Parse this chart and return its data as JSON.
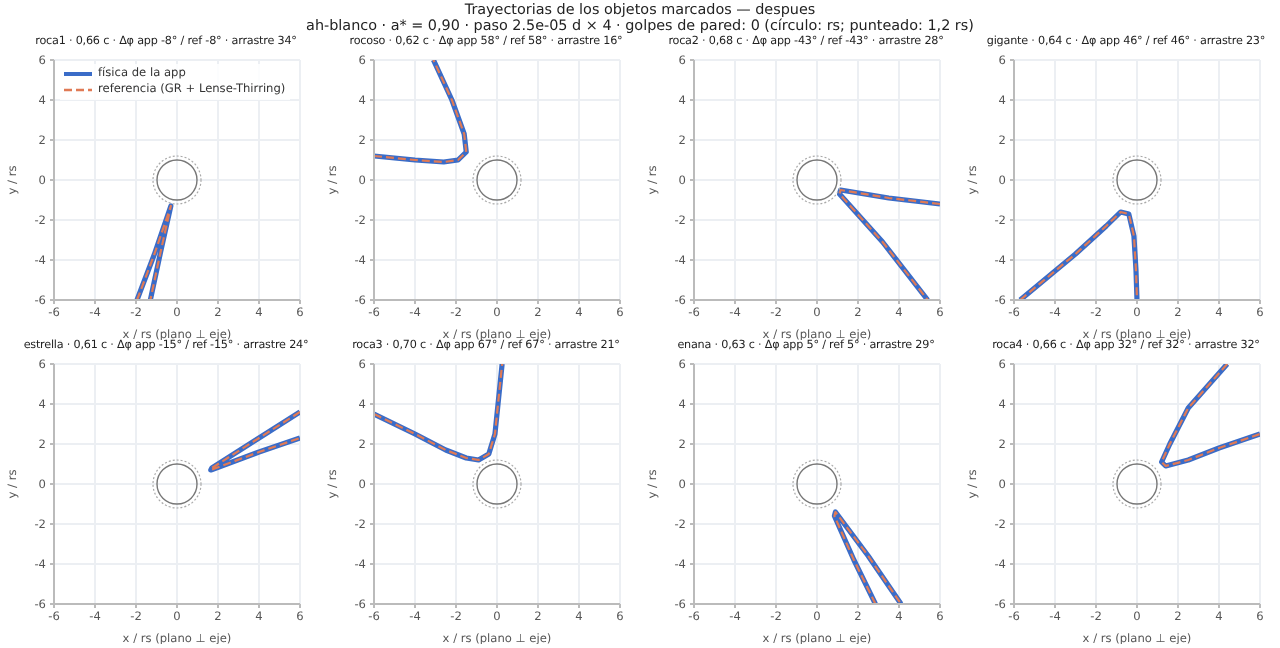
{
  "chart_data": [
    {
      "type": "line",
      "title": "roca1 · 0,66 c · Δφ app -8° / ref -8° · arrastre 34°",
      "annotations": [
        "Trayectorias de los objetos marcados — despues",
        "ah-blanco · a* = 0,90 · paso 2.5e-05 d × 4 · golpes de pared: 0  (círculo: rs; punteado: 1,2 rs)"
      ],
      "xlabel": "x / rs (plano ⊥ eje)",
      "ylabel": "y / rs",
      "xlim": [
        -6,
        6
      ],
      "ylim": [
        -6,
        6
      ],
      "xticks": [
        -6,
        -4,
        -2,
        0,
        2,
        4,
        6
      ],
      "yticks": [
        -6,
        -4,
        -2,
        0,
        2,
        4,
        6
      ],
      "grid": true,
      "legend": "top left",
      "series": [
        {
          "name": "física de la app",
          "color": "#3a6cc8",
          "line_style": "solid",
          "x": [
            -1.95,
            -1.1,
            -0.3,
            -0.8,
            -1.3
          ],
          "values": [
            -6,
            -3.7,
            -1.3,
            -3.6,
            -6
          ]
        },
        {
          "name": "referencia (GR + Lense-Thirring)",
          "color": "#e07a55",
          "line_style": "dashed",
          "x": [
            -1.95,
            -1.1,
            -0.3,
            -0.8,
            -1.3
          ],
          "values": [
            -6,
            -3.7,
            -1.3,
            -3.6,
            -6
          ]
        }
      ]
    },
    {
      "type": "line",
      "title": "rocoso · 0,62 c · Δφ app 58° / ref 58° · arrastre 16°",
      "xlabel": "x / rs (plano ⊥ eje)",
      "ylabel": "y / rs",
      "xlim": [
        -6,
        6
      ],
      "ylim": [
        -6,
        6
      ],
      "xticks": [
        -6,
        -4,
        -2,
        0,
        2,
        4,
        6
      ],
      "yticks": [
        -6,
        -4,
        -2,
        0,
        2,
        4,
        6
      ],
      "grid": true,
      "series": [
        {
          "color": "#3a6cc8",
          "line_style": "solid",
          "x": [
            -6,
            -4,
            -2.6,
            -1.9,
            -1.5,
            -1.6,
            -2.2,
            -3.1
          ],
          "values": [
            1.2,
            1.0,
            0.9,
            1.0,
            1.4,
            2.3,
            4,
            6
          ]
        },
        {
          "color": "#e07a55",
          "line_style": "dashed",
          "x": [
            -6,
            -4,
            -2.6,
            -1.9,
            -1.5,
            -1.6,
            -2.2,
            -3.1
          ],
          "values": [
            1.2,
            1.0,
            0.9,
            1.0,
            1.4,
            2.3,
            4,
            6
          ]
        }
      ]
    },
    {
      "type": "line",
      "title": "roca2 · 0,68 c · Δφ app -43° / ref -43° · arrastre 28°",
      "xlabel": "x / rs (plano ⊥ eje)",
      "ylabel": "y / rs",
      "xlim": [
        -6,
        6
      ],
      "ylim": [
        -6,
        6
      ],
      "xticks": [
        -6,
        -4,
        -2,
        0,
        2,
        4,
        6
      ],
      "yticks": [
        -6,
        -4,
        -2,
        0,
        2,
        4,
        6
      ],
      "grid": true,
      "series": [
        {
          "color": "#3a6cc8",
          "line_style": "solid",
          "x": [
            6,
            3.5,
            1.15,
            1.1,
            3.2,
            5.4
          ],
          "values": [
            -1.2,
            -0.9,
            -0.5,
            -0.7,
            -3.1,
            -6
          ]
        },
        {
          "color": "#e07a55",
          "line_style": "dashed",
          "x": [
            6,
            3.5,
            1.15,
            1.1,
            3.2,
            5.4
          ],
          "values": [
            -1.2,
            -0.9,
            -0.5,
            -0.7,
            -3.1,
            -6
          ]
        }
      ]
    },
    {
      "type": "line",
      "title": "gigante · 0,64 c · Δφ app 46° / ref 46° · arrastre 23°",
      "xlabel": "x / rs (plano ⊥ eje)",
      "ylabel": "y / rs",
      "xlim": [
        -6,
        6
      ],
      "ylim": [
        -6,
        6
      ],
      "xticks": [
        -6,
        -4,
        -2,
        0,
        2,
        4,
        6
      ],
      "yticks": [
        -6,
        -4,
        -2,
        0,
        2,
        4,
        6
      ],
      "grid": true,
      "series": [
        {
          "color": "#3a6cc8",
          "line_style": "solid",
          "x": [
            -5.7,
            -3,
            -1.5,
            -0.8,
            -0.4,
            -0.15,
            -0.05,
            0
          ],
          "values": [
            -6,
            -3.7,
            -2.3,
            -1.6,
            -1.7,
            -2.8,
            -4.5,
            -6
          ]
        },
        {
          "color": "#e07a55",
          "line_style": "dashed",
          "x": [
            -5.7,
            -3,
            -1.5,
            -0.8,
            -0.4,
            -0.15,
            -0.05,
            0
          ],
          "values": [
            -6,
            -3.7,
            -2.3,
            -1.6,
            -1.7,
            -2.8,
            -4.5,
            -6
          ]
        }
      ]
    },
    {
      "type": "line",
      "title": "estrella · 0,61 c · Δφ app -15° / ref -15° · arrastre 24°",
      "xlabel": "x / rs (plano ⊥ eje)",
      "ylabel": "y / rs",
      "xlim": [
        -6,
        6
      ],
      "ylim": [
        -6,
        6
      ],
      "xticks": [
        -6,
        -4,
        -2,
        0,
        2,
        4,
        6
      ],
      "yticks": [
        -6,
        -4,
        -2,
        0,
        2,
        4,
        6
      ],
      "grid": true,
      "series": [
        {
          "color": "#3a6cc8",
          "line_style": "solid",
          "x": [
            6,
            4,
            1.7,
            1.65,
            4,
            6
          ],
          "values": [
            3.6,
            2.3,
            0.8,
            0.7,
            1.6,
            2.3
          ]
        },
        {
          "color": "#e07a55",
          "line_style": "dashed",
          "x": [
            6,
            4,
            1.7,
            1.65,
            4,
            6
          ],
          "values": [
            3.6,
            2.3,
            0.8,
            0.7,
            1.6,
            2.3
          ]
        }
      ]
    },
    {
      "type": "line",
      "title": "roca3 · 0,70 c · Δφ app 67° / ref 67° · arrastre 21°",
      "xlabel": "x / rs (plano ⊥ eje)",
      "ylabel": "y / rs",
      "xlim": [
        -6,
        6
      ],
      "ylim": [
        -6,
        6
      ],
      "xticks": [
        -6,
        -4,
        -2,
        0,
        2,
        4,
        6
      ],
      "yticks": [
        -6,
        -4,
        -2,
        0,
        2,
        4,
        6
      ],
      "grid": true,
      "series": [
        {
          "color": "#3a6cc8",
          "line_style": "solid",
          "x": [
            -6,
            -4,
            -2.5,
            -1.5,
            -0.9,
            -0.4,
            -0.1,
            0.05,
            0.25
          ],
          "values": [
            3.5,
            2.5,
            1.7,
            1.3,
            1.2,
            1.5,
            2.5,
            4,
            6
          ]
        },
        {
          "color": "#e07a55",
          "line_style": "dashed",
          "x": [
            -6,
            -4,
            -2.5,
            -1.5,
            -0.9,
            -0.4,
            -0.1,
            0.05,
            0.25
          ],
          "values": [
            3.5,
            2.5,
            1.7,
            1.3,
            1.2,
            1.5,
            2.5,
            4,
            6
          ]
        }
      ]
    },
    {
      "type": "line",
      "title": "enana · 0,63 c · Δφ app 5° / ref 5° · arrastre 29°",
      "xlabel": "x / rs (plano ⊥ eje)",
      "ylabel": "y / rs",
      "xlim": [
        -6,
        6
      ],
      "ylim": [
        -6,
        6
      ],
      "xticks": [
        -6,
        -4,
        -2,
        0,
        2,
        4,
        6
      ],
      "yticks": [
        -6,
        -4,
        -2,
        0,
        2,
        4,
        6
      ],
      "grid": true,
      "series": [
        {
          "color": "#3a6cc8",
          "line_style": "solid",
          "x": [
            2.85,
            1.8,
            0.85,
            0.9,
            2.5,
            4.1
          ],
          "values": [
            -6,
            -3.8,
            -1.6,
            -1.4,
            -3.6,
            -6
          ]
        },
        {
          "color": "#e07a55",
          "line_style": "dashed",
          "x": [
            2.85,
            1.8,
            0.85,
            0.9,
            2.5,
            4.1
          ],
          "values": [
            -6,
            -3.8,
            -1.6,
            -1.4,
            -3.6,
            -6
          ]
        }
      ]
    },
    {
      "type": "line",
      "title": "roca4 · 0,66 c · Δφ app 32° / ref 32° · arrastre 32°",
      "xlabel": "x / rs (plano ⊥ eje)",
      "ylabel": "y / rs",
      "xlim": [
        -6,
        6
      ],
      "ylim": [
        -6,
        6
      ],
      "xticks": [
        -6,
        -4,
        -2,
        0,
        2,
        4,
        6
      ],
      "yticks": [
        -6,
        -4,
        -2,
        0,
        2,
        4,
        6
      ],
      "grid": true,
      "series": [
        {
          "color": "#3a6cc8",
          "line_style": "solid",
          "x": [
            4.4,
            2.5,
            1.6,
            1.2,
            1.4,
            2.5,
            4,
            6
          ],
          "values": [
            6,
            3.8,
            2.0,
            1.1,
            0.9,
            1.2,
            1.8,
            2.5
          ]
        },
        {
          "color": "#e07a55",
          "line_style": "dashed",
          "x": [
            4.4,
            2.5,
            1.6,
            1.2,
            1.4,
            2.5,
            4,
            6
          ],
          "values": [
            6,
            3.8,
            2.0,
            1.1,
            0.9,
            1.2,
            1.8,
            2.5
          ]
        }
      ]
    }
  ]
}
